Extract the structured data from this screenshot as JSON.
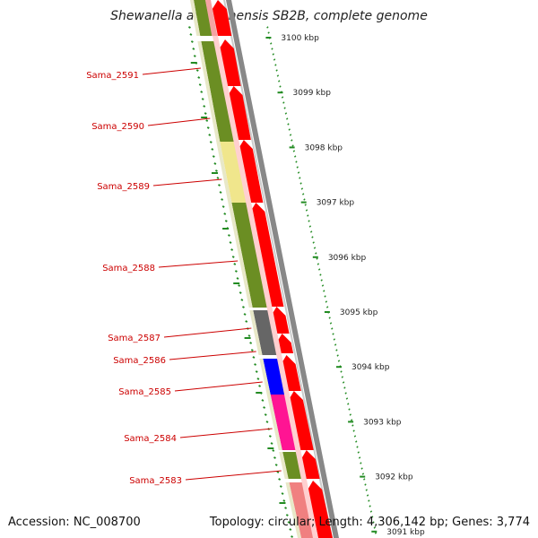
{
  "title": "Shewanella amazonensis SB2B, complete genome",
  "accession": "Accession: NC_008700",
  "topology": "Topology: circular; Length: 4,306,142 bp; Genes: 3,774",
  "colors": {
    "forward_cds": "#ff0000",
    "forward_light": "#f4a3a3",
    "reverse_olive": "#6b8e23",
    "reverse_yellow": "#f0e68c",
    "reverse_gray": "#666666",
    "reverse_blue": "#0000ff",
    "reverse_pink": "#ff1493",
    "reverse_pink_light": "#f08080",
    "backbone": "#888888",
    "scale_ticks": "#228b22",
    "labels": "#cc0000"
  },
  "scale_labels": [
    "3100 kbp",
    "3099 kbp",
    "3098 kbp",
    "3097 kbp",
    "3096 kbp",
    "3095 kbp",
    "3094 kbp",
    "3093 kbp",
    "3092 kbp",
    "3091 kbp"
  ],
  "gene_labels": [
    "Sama_2591",
    "Sama_2590",
    "Sama_2589",
    "Sama_2588",
    "Sama_2587",
    "Sama_2586",
    "Sama_2585",
    "Sama_2584",
    "Sama_2583"
  ]
}
